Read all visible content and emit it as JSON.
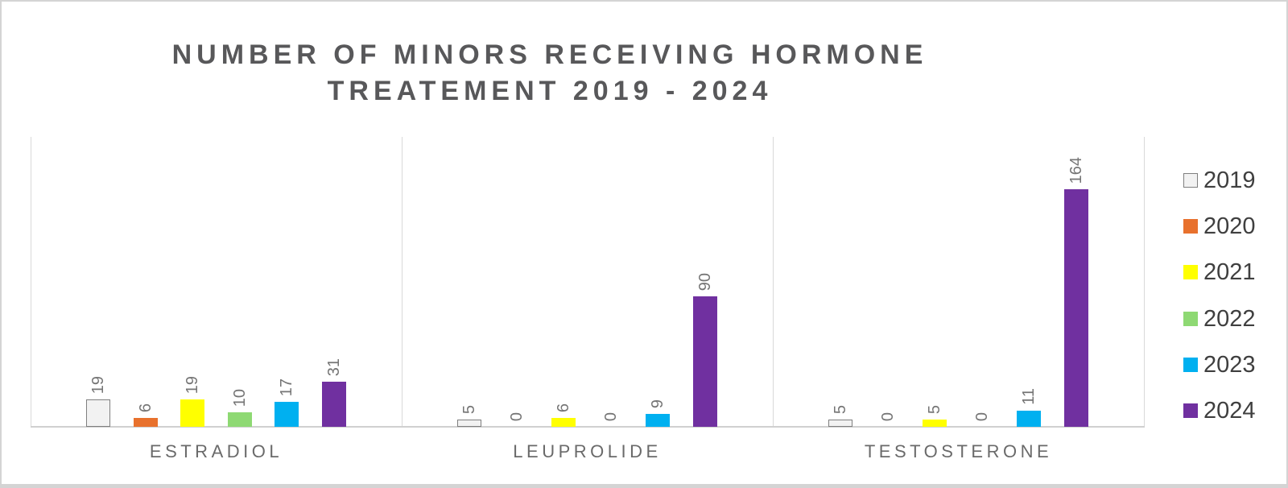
{
  "title": {
    "line1": "NUMBER OF MINORS RECEIVING HORMONE",
    "line2": "TREATEMENT 2019 - 2024"
  },
  "chart_data": {
    "type": "bar",
    "title": "NUMBER OF MINORS RECEIVING HORMONE TREATEMENT 2019 - 2024",
    "categories": [
      "ESTRADIOL",
      "LEUPROLIDE",
      "TESTOSTERONE"
    ],
    "series": [
      {
        "name": "2019",
        "color": "#f2f2f2",
        "border_color": "#7f7f7f",
        "values": [
          19,
          5,
          5
        ]
      },
      {
        "name": "2020",
        "color": "#e8712d",
        "values": [
          6,
          0,
          0
        ]
      },
      {
        "name": "2021",
        "color": "#ffff00",
        "values": [
          19,
          6,
          5
        ]
      },
      {
        "name": "2022",
        "color": "#8ed973",
        "values": [
          10,
          0,
          0
        ]
      },
      {
        "name": "2023",
        "color": "#00b0f0",
        "values": [
          17,
          9,
          11
        ]
      },
      {
        "name": "2024",
        "color": "#7030a0",
        "values": [
          31,
          90,
          164
        ]
      }
    ],
    "ylim": [
      0,
      200
    ],
    "grid": false,
    "legend_position": "right",
    "data_labels": "rotated-90-above-bars",
    "colors": {
      "title_text": "#58585a",
      "data_label": "#757575",
      "category_label": "#6a6a6a",
      "legend_label": "#3f3f3f",
      "axis_line": "#d9d9d9",
      "frame_border": "#d4d4d4",
      "background": "#ffffff"
    }
  }
}
